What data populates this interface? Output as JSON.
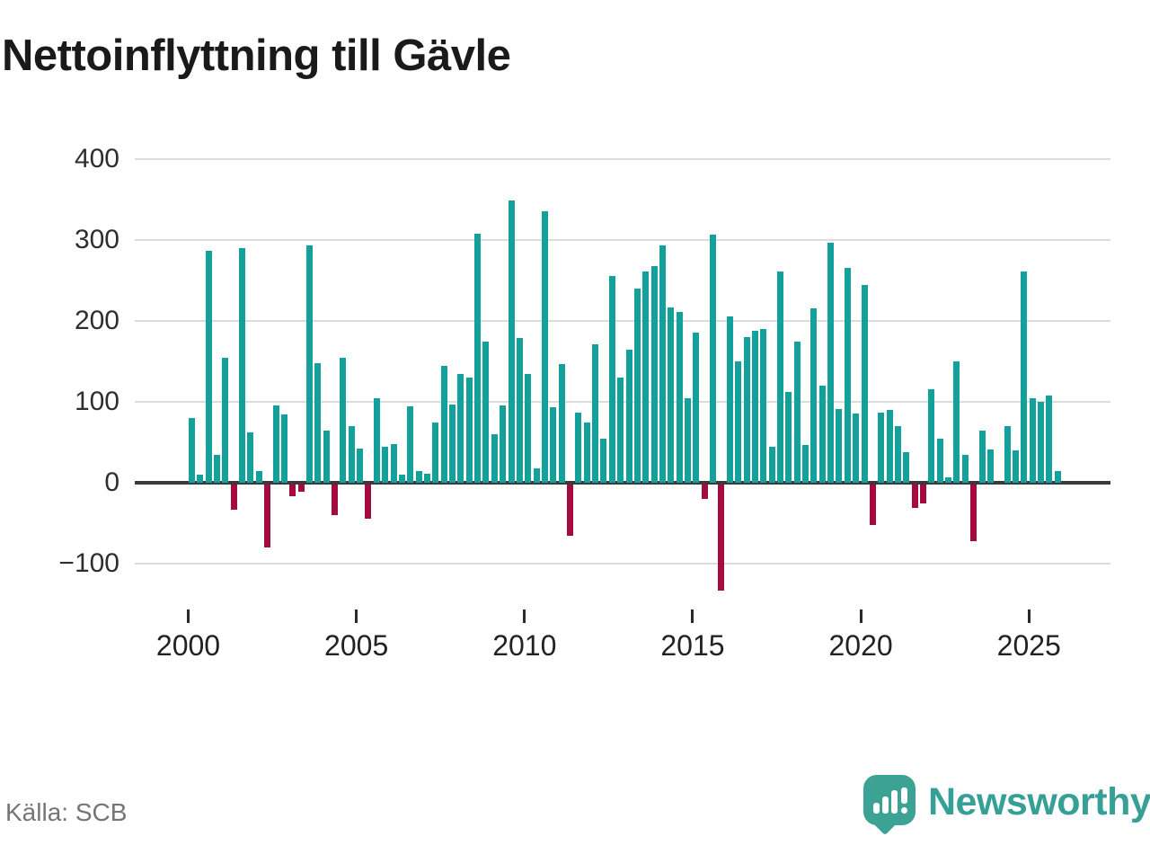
{
  "header": {
    "title": "Nettoinflyttning till Gävle"
  },
  "footer": {
    "source": "Källa: SCB",
    "brand_name": "Newsworthy"
  },
  "axes": {
    "y_tick_labels": [
      "400",
      "300",
      "200",
      "100",
      "0",
      "−100"
    ],
    "x_tick_labels": [
      "2000",
      "2005",
      "2010",
      "2015",
      "2020",
      "2025"
    ]
  },
  "colors": {
    "positive_bar": "#14a09b",
    "negative_bar": "#a50a41",
    "grid": "#dcdcdc",
    "zero_axis": "#3a3a3a",
    "title_text": "#1a1a1a",
    "source_text": "#757575",
    "brand": "#37a096"
  },
  "chart_data": {
    "type": "bar",
    "title": "Nettoinflyttning till Gävle",
    "xlabel": "",
    "ylabel": "",
    "frequency": "quarterly",
    "x_start": "2000 Q1",
    "x_end": "2025 Q4",
    "y_ticks": [
      400,
      300,
      200,
      100,
      0,
      -100
    ],
    "x_ticks": [
      2000,
      2005,
      2010,
      2015,
      2020,
      2025
    ],
    "ylim": [
      -150,
      430
    ],
    "grid": true,
    "legend": "none",
    "values": [
      80,
      10,
      287,
      35,
      155,
      -31,
      290,
      62,
      15,
      -78,
      96,
      84,
      -14,
      -9,
      293,
      148,
      65,
      -38,
      155,
      70,
      42,
      -42,
      104,
      44,
      48,
      10,
      95,
      14,
      11,
      75,
      144,
      97,
      134,
      130,
      308,
      174,
      60,
      96,
      349,
      179,
      135,
      18,
      336,
      93,
      147,
      -63,
      87,
      75,
      171,
      54,
      256,
      130,
      164,
      240,
      261,
      268,
      293,
      217,
      211,
      104,
      186,
      -18,
      307,
      -131,
      206,
      150,
      180,
      188,
      190,
      44,
      261,
      112,
      174,
      47,
      216,
      120,
      297,
      91,
      266,
      86,
      245,
      -50,
      87,
      90,
      70,
      38,
      -29,
      -23,
      116,
      54,
      7,
      150,
      34,
      -70,
      64,
      41,
      0,
      70,
      40,
      261,
      104,
      100,
      108,
      15
    ]
  }
}
